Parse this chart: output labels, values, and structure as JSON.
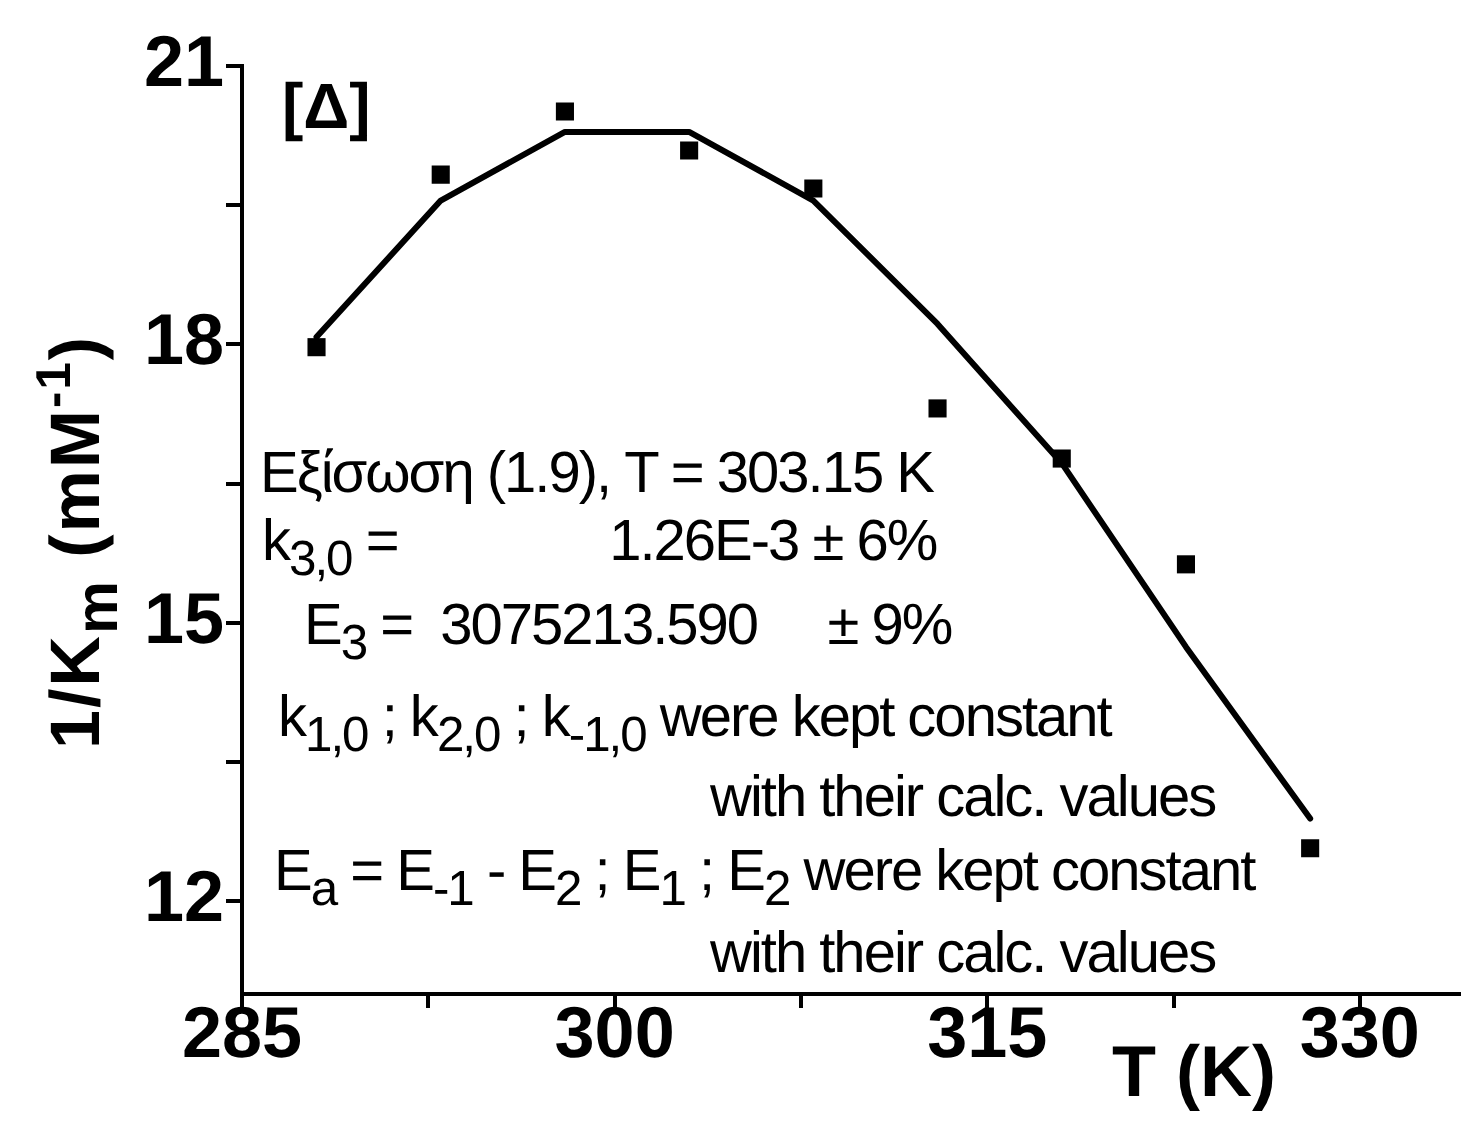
{
  "chart_data": {
    "type": "scatter",
    "xlabel": "T (K)",
    "ylabel": "1/K$_{m}$ (mM$^{-1}$)",
    "x": [
      288,
      293,
      298,
      303,
      308,
      313,
      318,
      323,
      328
    ],
    "series": [
      {
        "color": "#000000",
        "marker": "square",
        "values": [
          17.97,
          19.83,
          20.51,
          20.09,
          19.68,
          17.31,
          16.77,
          15.63,
          12.57
        ]
      },
      {
        "type": "line",
        "color": "#000000",
        "values": [
          18.08,
          19.55,
          20.29,
          20.29,
          19.55,
          18.22,
          16.72,
          14.74,
          12.89
        ]
      }
    ],
    "xlim": [
      285,
      334
    ],
    "xticks": [
      285,
      {
        "value": 292.5,
        "label": null
      },
      300,
      {
        "value": 307.5,
        "label": null
      },
      315,
      {
        "value": 322.5,
        "label": null
      },
      330
    ],
    "ylim": [
      11,
      21
    ],
    "yticks": [
      12,
      {
        "value": 13.5,
        "label": null
      },
      15,
      {
        "value": 16.5,
        "label": null
      },
      18,
      {
        "value": 19.5,
        "label": null
      },
      21
    ],
    "annotations": [
      "[Δ]",
      "Εξίσωση (1.9), T = 303.15 K",
      "k$_{3,0}$ =               1.26E-3 ± 6%",
      "E$_{3}$ =  3075213.590     ± 9%",
      "k$_{1,0}$ ; k$_{2,0}$ ; k$_{-1,0}$ were kept constant",
      "with their calc. values",
      "E$_{a}$ = E$_{-1}$ - E$_{2}$ ; E$_{1}$ ; E$_{2}$ were kept constant",
      "with their calc. values"
    ]
  }
}
